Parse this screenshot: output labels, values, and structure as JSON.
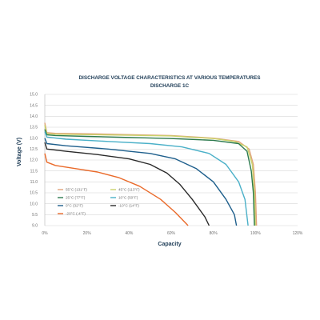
{
  "chart_data": {
    "type": "line",
    "title": "DISCHARGE VOLTAGE CHARACTERISTICS AT VARIOUS TEMPERATURES",
    "subtitle": "DISCHARGE 1C",
    "xlabel": "Capacity",
    "ylabel": "Voltage (V)",
    "xlim": [
      0,
      120
    ],
    "ylim": [
      9.0,
      15.0
    ],
    "x_ticks": [
      "0%",
      "20%",
      "40%",
      "60%",
      "80%",
      "100%",
      "120%"
    ],
    "y_ticks": [
      "15.0",
      "14.5",
      "14.0",
      "13.5",
      "13.0",
      "12.5",
      "12.0",
      "11.5",
      "11.0",
      "10.5",
      "10.0",
      "9.5",
      "9.0"
    ],
    "grid": "horizontal",
    "legend_position": "lower-left",
    "series": [
      {
        "name": "55°C (131°F)",
        "color": "#e0a37a",
        "points": [
          [
            0,
            13.7
          ],
          [
            1,
            13.25
          ],
          [
            5,
            13.22
          ],
          [
            20,
            13.2
          ],
          [
            40,
            13.16
          ],
          [
            60,
            13.12
          ],
          [
            80,
            13.0
          ],
          [
            92,
            12.85
          ],
          [
            97,
            12.5
          ],
          [
            99,
            11.8
          ],
          [
            100,
            10.5
          ],
          [
            100.5,
            9.0
          ]
        ]
      },
      {
        "name": "45°C (113°F)",
        "color": "#c9d36b",
        "points": [
          [
            0,
            13.6
          ],
          [
            1,
            13.2
          ],
          [
            5,
            13.18
          ],
          [
            20,
            13.16
          ],
          [
            40,
            13.13
          ],
          [
            60,
            13.1
          ],
          [
            80,
            12.98
          ],
          [
            90,
            12.85
          ],
          [
            96,
            12.6
          ],
          [
            98.5,
            11.8
          ],
          [
            99.5,
            10.5
          ],
          [
            100,
            9.0
          ]
        ]
      },
      {
        "name": "25°C (77°F)",
        "color": "#2d7a4e",
        "points": [
          [
            0,
            13.4
          ],
          [
            1,
            13.15
          ],
          [
            5,
            13.12
          ],
          [
            20,
            13.08
          ],
          [
            40,
            13.03
          ],
          [
            60,
            12.98
          ],
          [
            80,
            12.9
          ],
          [
            92,
            12.75
          ],
          [
            96,
            12.4
          ],
          [
            98,
            11.5
          ],
          [
            99,
            10.5
          ],
          [
            99.5,
            9.0
          ]
        ]
      },
      {
        "name": "10°C (50°F)",
        "color": "#4ab0c8",
        "points": [
          [
            0,
            13.3
          ],
          [
            1,
            13.05
          ],
          [
            10,
            12.95
          ],
          [
            30,
            12.85
          ],
          [
            50,
            12.75
          ],
          [
            65,
            12.6
          ],
          [
            78,
            12.3
          ],
          [
            86,
            11.8
          ],
          [
            92,
            11.0
          ],
          [
            95,
            10.2
          ],
          [
            96.5,
            9.0
          ]
        ]
      },
      {
        "name": "0°C (32°F)",
        "color": "#1e5f8c",
        "points": [
          [
            0,
            13.0
          ],
          [
            1,
            12.75
          ],
          [
            10,
            12.65
          ],
          [
            30,
            12.5
          ],
          [
            50,
            12.3
          ],
          [
            62,
            12.05
          ],
          [
            72,
            11.6
          ],
          [
            80,
            11.0
          ],
          [
            86,
            10.2
          ],
          [
            90,
            9.5
          ],
          [
            91,
            9.0
          ]
        ]
      },
      {
        "name": "-10°C (14°F)",
        "color": "#2a2a2a",
        "points": [
          [
            0,
            12.8
          ],
          [
            1,
            12.5
          ],
          [
            10,
            12.4
          ],
          [
            25,
            12.25
          ],
          [
            40,
            12.05
          ],
          [
            50,
            11.8
          ],
          [
            58,
            11.4
          ],
          [
            64,
            10.9
          ],
          [
            70,
            10.2
          ],
          [
            76,
            9.4
          ],
          [
            78,
            9.0
          ]
        ]
      },
      {
        "name": "-20°C (-4°F)",
        "color": "#ea6a2a",
        "points": [
          [
            0,
            12.3
          ],
          [
            1,
            11.9
          ],
          [
            5,
            11.75
          ],
          [
            15,
            11.6
          ],
          [
            25,
            11.45
          ],
          [
            35,
            11.2
          ],
          [
            45,
            10.8
          ],
          [
            55,
            10.2
          ],
          [
            62,
            9.6
          ],
          [
            66,
            9.2
          ],
          [
            68,
            9.0
          ]
        ]
      }
    ]
  }
}
